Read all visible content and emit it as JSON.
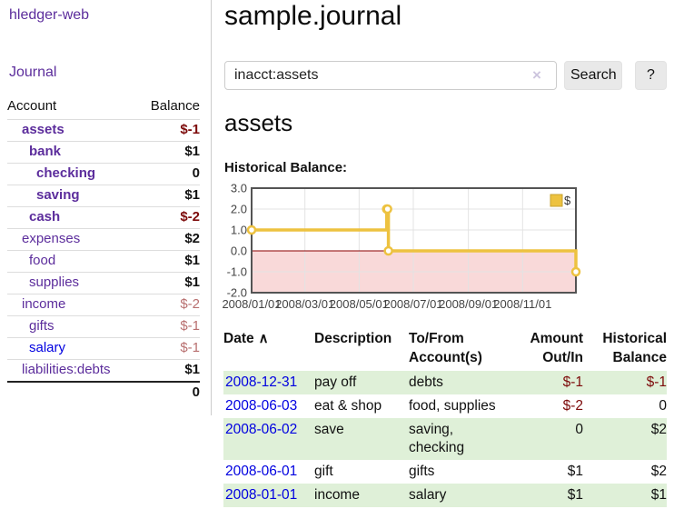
{
  "app": {
    "title": "hledger-web",
    "nav_journal": "Journal"
  },
  "sidebar": {
    "accounts_header": {
      "account": "Account",
      "balance": "Balance"
    },
    "accounts": [
      {
        "name": "assets",
        "depth": 1,
        "balance": "$-1",
        "bold": true,
        "neg": "strong",
        "link": "purple"
      },
      {
        "name": "bank",
        "depth": 2,
        "balance": "$1",
        "bold": true,
        "neg": "none",
        "link": "purple"
      },
      {
        "name": "checking",
        "depth": 3,
        "balance": "0",
        "bold": true,
        "neg": "none",
        "link": "purple"
      },
      {
        "name": "saving",
        "depth": 3,
        "balance": "$1",
        "bold": true,
        "neg": "none",
        "link": "purple"
      },
      {
        "name": "cash",
        "depth": 2,
        "balance": "$-2",
        "bold": true,
        "neg": "strong",
        "link": "purple"
      },
      {
        "name": "expenses",
        "depth": 1,
        "balance": "$2",
        "bold": false,
        "neg": "none",
        "link": "purple"
      },
      {
        "name": "food",
        "depth": 2,
        "balance": "$1",
        "bold": false,
        "neg": "none",
        "link": "purple"
      },
      {
        "name": "supplies",
        "depth": 2,
        "balance": "$1",
        "bold": false,
        "neg": "none",
        "link": "purple"
      },
      {
        "name": "income",
        "depth": 1,
        "balance": "$-2",
        "bold": false,
        "neg": "soft",
        "link": "purple"
      },
      {
        "name": "gifts",
        "depth": 2,
        "balance": "$-1",
        "bold": false,
        "neg": "soft",
        "link": "purple"
      },
      {
        "name": "salary",
        "depth": 2,
        "balance": "$-1",
        "bold": false,
        "neg": "soft",
        "link": "blue"
      },
      {
        "name": "liabilities:debts",
        "depth": 1,
        "balance": "$1",
        "bold": false,
        "neg": "none",
        "link": "purple"
      }
    ],
    "total": "0"
  },
  "header": {
    "title": "sample.journal"
  },
  "search": {
    "value": "inacct:assets",
    "clear_icon": "×",
    "button": "Search",
    "help_button": "?"
  },
  "account_page": {
    "heading": "assets",
    "chart_title": "Historical Balance:"
  },
  "chart_data": {
    "type": "line",
    "subtype": "step",
    "title": "Historical Balance",
    "xlim": [
      "2008-01-01",
      "2008-12-31"
    ],
    "ylim": [
      -2,
      3
    ],
    "x_ticks": [
      "2008/01/01",
      "2008/03/01",
      "2008/05/01",
      "2008/07/01",
      "2008/09/01",
      "2008/11/01"
    ],
    "y_ticks": [
      3.0,
      2.0,
      1.0,
      0.0,
      -1.0,
      -2.0
    ],
    "grid": true,
    "legend": "$",
    "legend_position": "top-right",
    "zero_line_color": "#8b0000",
    "negative_region_color": "#f9d9d9",
    "series": [
      {
        "name": "$",
        "color": "#edc240",
        "points": [
          [
            "2008-01-01",
            1
          ],
          [
            "2008-06-01",
            2
          ],
          [
            "2008-06-02",
            2
          ],
          [
            "2008-06-03",
            0
          ],
          [
            "2008-12-31",
            -1
          ]
        ]
      }
    ]
  },
  "register": {
    "columns": [
      "Date",
      "Description",
      "To/From Account(s)",
      "Amount Out/In",
      "Historical Balance"
    ],
    "sort_icon": "∧",
    "rows": [
      {
        "date": "2008-12-31",
        "description": "pay off",
        "accounts": "debts",
        "amount": "$-1",
        "balance": "$-1",
        "amount_neg": true,
        "balance_neg": true
      },
      {
        "date": "2008-06-03",
        "description": "eat & shop",
        "accounts": "food, supplies",
        "amount": "$-2",
        "balance": "0",
        "amount_neg": true,
        "balance_neg": false
      },
      {
        "date": "2008-06-02",
        "description": "save",
        "accounts": "saving, checking",
        "amount": "0",
        "balance": "$2",
        "amount_neg": false,
        "balance_neg": false
      },
      {
        "date": "2008-06-01",
        "description": "gift",
        "accounts": "gifts",
        "amount": "$1",
        "balance": "$2",
        "amount_neg": false,
        "balance_neg": false
      },
      {
        "date": "2008-01-01",
        "description": "income",
        "accounts": "salary",
        "amount": "$1",
        "balance": "$1",
        "amount_neg": false,
        "balance_neg": false
      }
    ]
  },
  "colors": {
    "link_purple": "#5c2d9c",
    "link_blue": "#0000e0",
    "negative_strong": "#7d0b0b",
    "negative_soft": "#b86f6f",
    "row_green": "#dff0d8",
    "chart_line": "#edc240",
    "chart_zero_line": "#8b0000",
    "chart_negative_fill": "#f9d9d9",
    "button_bg": "#e9e9e9"
  }
}
